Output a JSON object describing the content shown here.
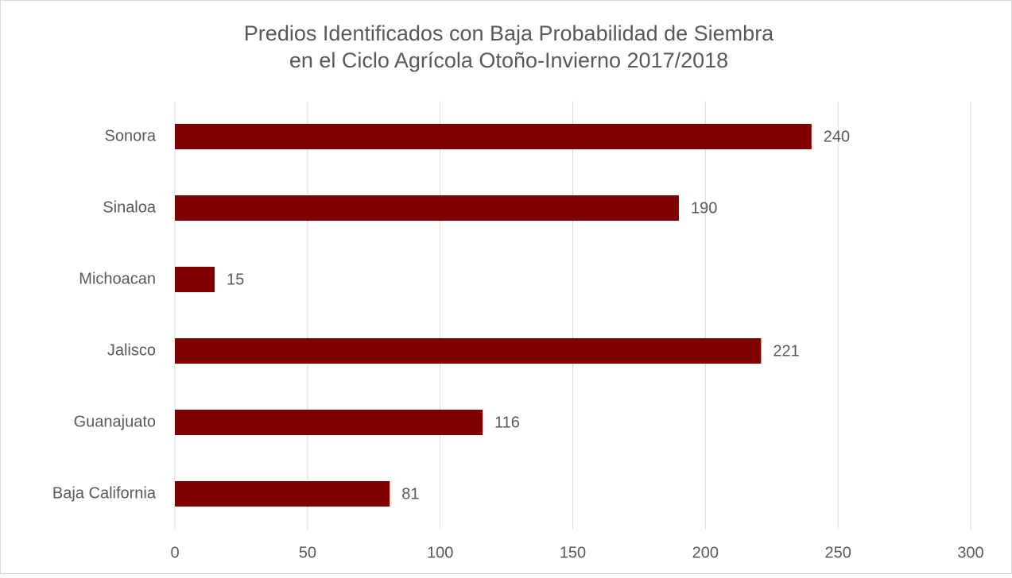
{
  "chart_data": {
    "type": "bar",
    "orientation": "horizontal",
    "title": [
      "Predios Identificados con Baja Probabilidad de Siembra",
      "en el Ciclo Agrícola Otoño-Invierno 2017/2018"
    ],
    "categories": [
      "Sonora",
      "Sinaloa",
      "Michoacan",
      "Jalisco",
      "Guanajuato",
      "Baja California"
    ],
    "values": [
      240,
      190,
      15,
      221,
      116,
      81
    ],
    "color": "#800000",
    "xlim": [
      0,
      300
    ],
    "xticks": [
      0,
      50,
      100,
      150,
      200,
      250,
      300
    ],
    "grid": true
  }
}
